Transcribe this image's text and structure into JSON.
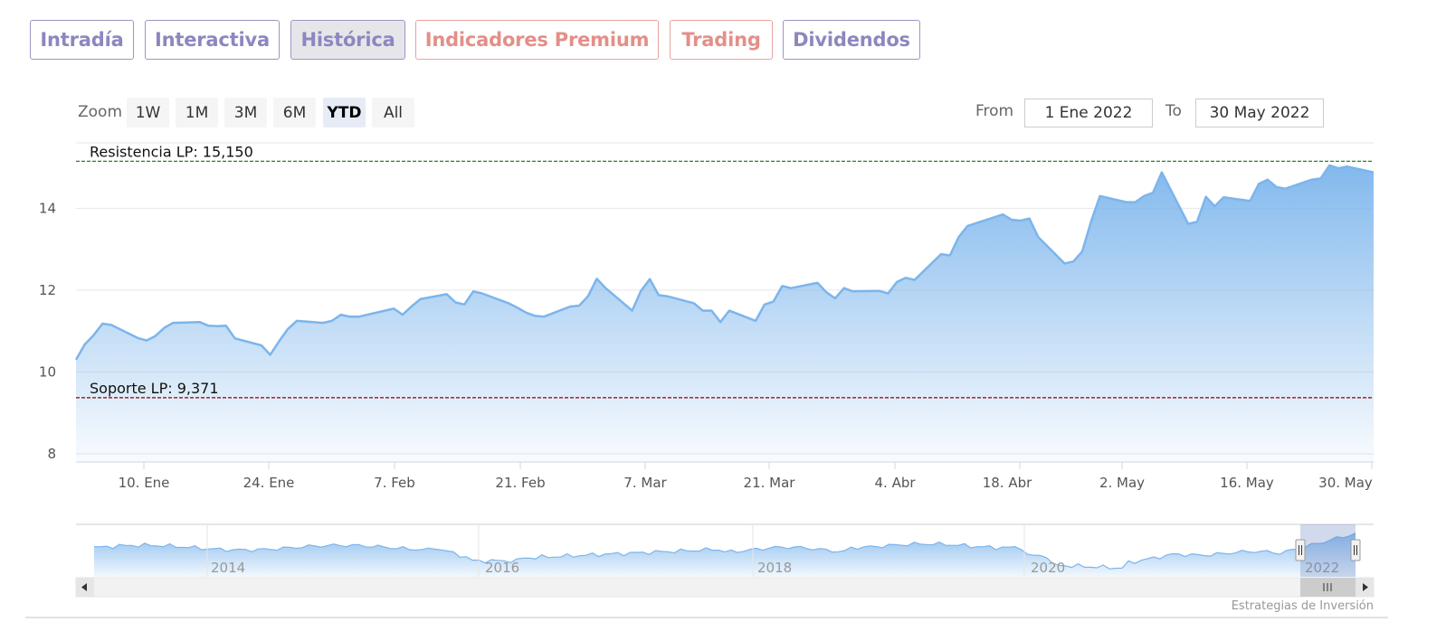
{
  "tabs": [
    {
      "label": "Intradía",
      "active": false,
      "premium": false
    },
    {
      "label": "Interactiva",
      "active": false,
      "premium": false
    },
    {
      "label": "Histórica",
      "active": true,
      "premium": false
    },
    {
      "label": "Indicadores Premium",
      "active": false,
      "premium": true
    },
    {
      "label": "Trading",
      "active": false,
      "premium": true
    },
    {
      "label": "Dividendos",
      "active": false,
      "premium": false
    }
  ],
  "range_selector": {
    "zoom_label": "Zoom",
    "buttons": [
      "1W",
      "1M",
      "3M",
      "6M",
      "YTD",
      "All"
    ],
    "selected": "YTD",
    "from_label": "From",
    "from_value": "1 Ene 2022",
    "to_label": "To",
    "to_value": "30 May 2022"
  },
  "colors": {
    "tab_border": "#9a96c4",
    "tab_text": "#8c87bf",
    "premium_text": "#e38f88",
    "area_line": "#7cb5ec",
    "resistance_line": "#2e7d32",
    "support_line": "#8b0000"
  },
  "chart_data": {
    "type": "area",
    "ylim": [
      7.8,
      15.6
    ],
    "yticks": [
      8,
      10,
      12,
      14
    ],
    "xticks": [
      "10. Ene",
      "24. Ene",
      "7. Feb",
      "21. Feb",
      "7. Mar",
      "21. Mar",
      "4. Abr",
      "18. Abr",
      "2. May",
      "16. May",
      "30. May"
    ],
    "x_range": [
      "2022-01-03",
      "2022-05-30"
    ],
    "plot_lines": [
      {
        "label": "Resistencia LP: 15,150",
        "value": 15.15
      },
      {
        "label": "Soporte LP: 9,371",
        "value": 9.371
      }
    ],
    "series": [
      {
        "x": [
          "2022-01-03",
          "2022-01-04",
          "2022-01-05",
          "2022-01-06",
          "2022-01-07",
          "2022-01-10",
          "2022-01-11",
          "2022-01-12",
          "2022-01-13",
          "2022-01-14",
          "2022-01-17",
          "2022-01-18",
          "2022-01-19",
          "2022-01-20",
          "2022-01-21",
          "2022-01-24",
          "2022-01-25",
          "2022-01-26",
          "2022-01-27",
          "2022-01-28",
          "2022-01-31",
          "2022-02-01",
          "2022-02-02",
          "2022-02-03",
          "2022-02-04",
          "2022-02-07",
          "2022-02-08",
          "2022-02-09",
          "2022-02-10",
          "2022-02-11",
          "2022-02-14",
          "2022-02-15",
          "2022-02-16",
          "2022-02-17",
          "2022-02-18",
          "2022-02-21",
          "2022-02-22",
          "2022-02-23",
          "2022-02-24",
          "2022-02-25",
          "2022-02-28",
          "2022-03-01",
          "2022-03-02",
          "2022-03-03",
          "2022-03-04",
          "2022-03-07",
          "2022-03-08",
          "2022-03-09",
          "2022-03-10",
          "2022-03-11",
          "2022-03-14",
          "2022-03-15",
          "2022-03-16",
          "2022-03-17",
          "2022-03-18",
          "2022-03-21",
          "2022-03-22",
          "2022-03-23",
          "2022-03-24",
          "2022-03-25",
          "2022-03-28",
          "2022-03-29",
          "2022-03-30",
          "2022-03-31",
          "2022-04-01",
          "2022-04-04",
          "2022-04-05",
          "2022-04-06",
          "2022-04-07",
          "2022-04-08",
          "2022-04-11",
          "2022-04-12",
          "2022-04-13",
          "2022-04-14",
          "2022-04-18",
          "2022-04-19",
          "2022-04-20",
          "2022-04-21",
          "2022-04-22",
          "2022-04-25",
          "2022-04-26",
          "2022-04-27",
          "2022-04-28",
          "2022-04-29",
          "2022-05-02",
          "2022-05-03",
          "2022-05-04",
          "2022-05-05",
          "2022-05-06",
          "2022-05-09",
          "2022-05-10",
          "2022-05-11",
          "2022-05-12",
          "2022-05-13",
          "2022-05-16",
          "2022-05-17",
          "2022-05-18",
          "2022-05-19",
          "2022-05-20",
          "2022-05-23",
          "2022-05-24",
          "2022-05-25",
          "2022-05-26",
          "2022-05-27",
          "2022-05-30"
        ],
        "y": [
          10.3,
          10.68,
          10.9,
          11.18,
          11.15,
          10.83,
          10.77,
          10.88,
          11.08,
          11.2,
          11.22,
          11.13,
          11.12,
          11.13,
          10.82,
          10.65,
          10.42,
          10.75,
          11.05,
          11.25,
          11.2,
          11.25,
          11.4,
          11.35,
          11.35,
          11.5,
          11.55,
          11.4,
          11.6,
          11.78,
          11.9,
          11.7,
          11.65,
          11.97,
          11.92,
          11.68,
          11.57,
          11.45,
          11.37,
          11.35,
          11.6,
          11.62,
          11.85,
          12.28,
          12.05,
          11.5,
          11.98,
          12.27,
          11.88,
          11.85,
          11.68,
          11.5,
          11.5,
          11.22,
          11.5,
          11.25,
          11.65,
          11.72,
          12.1,
          12.05,
          12.18,
          11.95,
          11.8,
          12.05,
          11.97,
          11.98,
          11.92,
          12.2,
          12.3,
          12.25,
          12.88,
          12.85,
          13.3,
          13.57,
          13.85,
          13.72,
          13.7,
          13.75,
          13.3,
          12.65,
          12.7,
          12.95,
          13.68,
          14.3,
          14.15,
          14.15,
          14.3,
          14.38,
          14.88,
          13.62,
          13.67,
          14.28,
          14.05,
          14.27,
          14.18,
          14.6,
          14.7,
          14.52,
          14.48,
          14.7,
          14.73,
          15.05,
          14.98,
          15.02,
          14.88
        ]
      }
    ],
    "navigator": {
      "year_labels": [
        "2014",
        "2016",
        "2018",
        "2020",
        "2022"
      ]
    }
  },
  "credits": "Estrategias de Inversión"
}
